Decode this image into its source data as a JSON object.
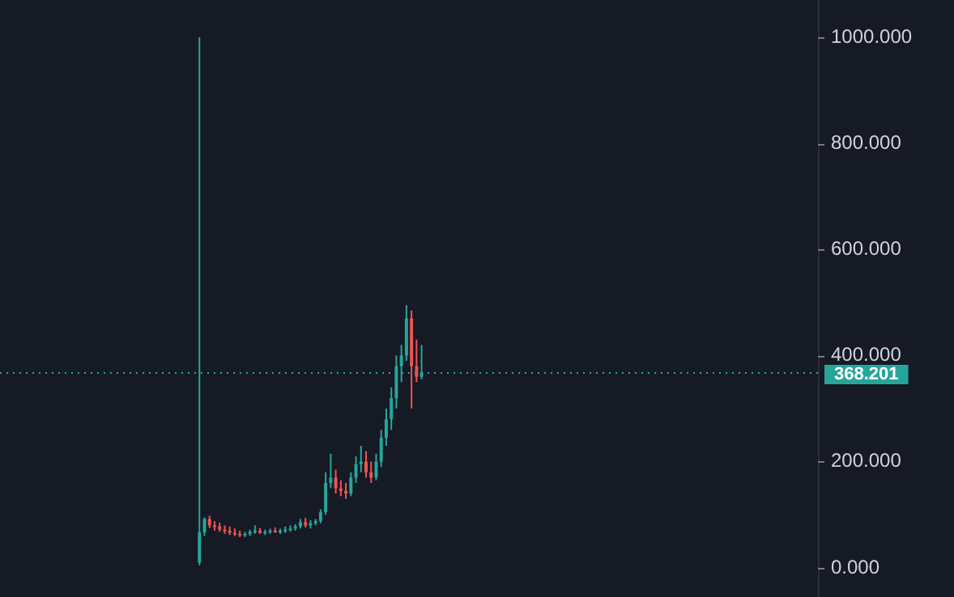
{
  "chart_data": {
    "type": "candlestick",
    "categories": [
      null,
      null,
      null,
      null,
      null,
      null,
      null,
      null,
      null,
      null,
      null,
      null,
      null,
      null,
      null,
      null,
      null,
      null,
      null,
      null,
      null,
      null,
      null,
      null,
      null,
      null,
      null,
      null,
      null,
      null,
      null,
      null,
      null,
      null,
      null,
      null,
      null,
      null,
      null,
      null,
      null,
      null,
      null,
      null,
      null,
      null,
      null,
      null,
      null,
      null,
      null,
      null,
      null,
      null,
      null,
      null,
      null,
      null,
      null,
      null,
      null,
      null,
      null,
      null,
      null,
      null,
      null,
      null,
      null,
      null,
      null,
      null,
      null,
      null,
      null,
      null,
      null,
      null,
      null,
      null,
      null,
      null,
      null,
      null,
      null,
      null,
      null,
      null,
      null,
      null,
      null,
      null,
      null,
      null,
      null,
      null,
      null,
      null,
      null,
      null,
      null,
      null,
      null,
      null,
      null,
      null,
      null,
      null,
      null,
      null,
      null,
      null,
      null,
      null,
      null,
      null,
      null,
      null,
      null,
      null,
      null,
      null,
      null,
      null,
      null,
      null,
      null,
      null,
      null,
      null,
      null,
      null,
      null,
      null,
      null,
      null,
      null,
      null,
      null,
      null,
      null,
      null,
      null,
      null,
      null,
      null,
      null,
      null,
      null,
      null,
      null,
      null,
      null,
      null,
      null,
      null,
      null,
      null,
      null,
      null,
      null,
      null
    ],
    "ohlc": [
      null,
      null,
      null,
      null,
      null,
      null,
      null,
      null,
      null,
      null,
      null,
      null,
      null,
      null,
      null,
      null,
      null,
      null,
      null,
      null,
      null,
      null,
      null,
      null,
      null,
      null,
      null,
      null,
      null,
      null,
      null,
      null,
      null,
      null,
      null,
      null,
      null,
      null,
      null,
      [
        10,
        1000,
        5,
        67
      ],
      [
        67,
        95,
        60,
        92
      ],
      [
        92,
        98,
        75,
        80
      ],
      [
        80,
        88,
        70,
        78
      ],
      [
        78,
        85,
        68,
        72
      ],
      [
        72,
        80,
        64,
        70
      ],
      [
        70,
        78,
        62,
        66
      ],
      [
        66,
        74,
        60,
        64
      ],
      [
        64,
        70,
        58,
        62
      ],
      [
        62,
        68,
        58,
        64
      ],
      [
        64,
        72,
        60,
        68
      ],
      [
        68,
        80,
        64,
        70
      ],
      [
        70,
        75,
        64,
        66
      ],
      [
        66,
        72,
        62,
        68
      ],
      [
        68,
        74,
        64,
        70
      ],
      [
        70,
        76,
        66,
        68
      ],
      [
        68,
        74,
        64,
        70
      ],
      [
        70,
        78,
        66,
        72
      ],
      [
        72,
        80,
        68,
        74
      ],
      [
        74,
        82,
        70,
        78
      ],
      [
        78,
        92,
        74,
        86
      ],
      [
        86,
        94,
        76,
        80
      ],
      [
        80,
        90,
        74,
        84
      ],
      [
        84,
        92,
        80,
        88
      ],
      [
        88,
        110,
        84,
        105
      ],
      [
        105,
        180,
        100,
        160
      ],
      [
        160,
        215,
        150,
        170
      ],
      [
        170,
        185,
        140,
        150
      ],
      [
        150,
        165,
        135,
        145
      ],
      [
        145,
        160,
        130,
        140
      ],
      [
        140,
        180,
        135,
        170
      ],
      [
        170,
        210,
        160,
        195
      ],
      [
        195,
        230,
        180,
        200
      ],
      [
        200,
        220,
        170,
        180
      ],
      [
        180,
        200,
        160,
        170
      ],
      [
        170,
        215,
        165,
        200
      ],
      [
        200,
        260,
        190,
        245
      ],
      [
        245,
        300,
        230,
        280
      ],
      [
        280,
        340,
        260,
        320
      ],
      [
        320,
        400,
        300,
        380
      ],
      [
        380,
        420,
        350,
        400
      ],
      [
        400,
        495,
        390,
        470
      ],
      [
        470,
        485,
        300,
        380
      ],
      [
        380,
        430,
        350,
        360
      ],
      [
        360,
        420,
        355,
        368.201
      ],
      null,
      null,
      null,
      null,
      null,
      null,
      null,
      null,
      null,
      null,
      null,
      null,
      null,
      null,
      null,
      null,
      null,
      null,
      null,
      null,
      null,
      null,
      null,
      null,
      null,
      null,
      null,
      null,
      null,
      null,
      null,
      null,
      null,
      null,
      null,
      null,
      null,
      null,
      null,
      null,
      null,
      null,
      null,
      null,
      null,
      null,
      null,
      null,
      null,
      null,
      null,
      null,
      null,
      null,
      null,
      null,
      null,
      null,
      null,
      null,
      null,
      null,
      null,
      null,
      null,
      null,
      null,
      null,
      null,
      null,
      null,
      null,
      null,
      null,
      null,
      null,
      null,
      null
    ],
    "colors": [
      null,
      null,
      null,
      null,
      null,
      null,
      null,
      null,
      null,
      null,
      null,
      null,
      null,
      null,
      null,
      null,
      null,
      null,
      null,
      null,
      null,
      null,
      null,
      null,
      null,
      null,
      null,
      null,
      null,
      null,
      null,
      null,
      null,
      null,
      null,
      null,
      null,
      null,
      null,
      "#26a69a",
      "#26a69a",
      "#ef5350",
      "#ef5350",
      "#ef5350",
      "#ef5350",
      "#ef5350",
      "#ef5350",
      "#ef5350",
      "#26a69a",
      "#26a69a",
      "#26a69a",
      "#ef5350",
      "#26a69a",
      "#26a69a",
      "#ef5350",
      "#26a69a",
      "#26a69a",
      "#26a69a",
      "#26a69a",
      "#26a69a",
      "#ef5350",
      "#26a69a",
      "#26a69a",
      "#26a69a",
      "#26a69a",
      "#26a69a",
      "#ef5350",
      "#ef5350",
      "#ef5350",
      "#26a69a",
      "#26a69a",
      "#26a69a",
      "#ef5350",
      "#ef5350",
      "#26a69a",
      "#26a69a",
      "#26a69a",
      "#26a69a",
      "#26a69a",
      "#26a69a",
      "#26a69a",
      "#ef5350",
      "#ef5350",
      "#26a69a",
      null,
      null,
      null,
      null,
      null,
      null,
      null,
      null,
      null,
      null,
      null,
      null,
      null,
      null,
      null,
      null,
      null,
      null,
      null,
      null,
      null,
      null,
      null,
      null,
      null,
      null,
      null,
      null,
      null,
      null,
      null,
      null,
      null,
      null,
      null,
      null,
      null,
      null,
      null,
      null,
      null,
      null,
      null,
      null,
      null,
      null,
      null,
      null,
      null,
      null,
      null,
      null,
      null,
      null,
      null,
      null,
      null,
      null,
      null,
      null,
      null,
      null,
      null,
      null,
      null,
      null,
      null,
      null,
      null,
      null,
      null,
      null,
      null,
      null,
      null,
      null,
      null,
      null
    ],
    "ylim": [
      -55,
      1070
    ],
    "yticks": [
      {
        "value": 0,
        "label": "0.000"
      },
      {
        "value": 200,
        "label": "200.000"
      },
      {
        "value": 400,
        "label": "400.000"
      },
      {
        "value": 600,
        "label": "600.000"
      },
      {
        "value": 800,
        "label": "800.000"
      },
      {
        "value": 1000,
        "label": "1000.000"
      }
    ],
    "ref_lines": [
      {
        "axis": "y",
        "value": 368.201,
        "label": "368.201",
        "color": "#26a69a",
        "line_style": "dotted"
      }
    ],
    "grid": false,
    "legend": false
  }
}
